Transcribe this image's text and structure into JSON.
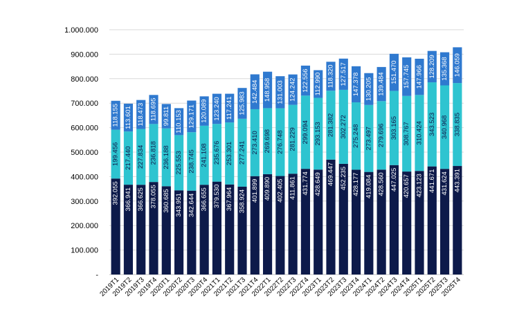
{
  "chart_data": {
    "type": "bar",
    "stacked": true,
    "ylim": [
      0,
      1000000
    ],
    "yticks": [
      "-",
      "100.000",
      "200.000",
      "300.000",
      "400.000",
      "500.000",
      "600.000",
      "700.000",
      "800.000",
      "900.000",
      "1.000.000"
    ],
    "grid": true,
    "categories": [
      "2019T1",
      "2019T2",
      "2019T3",
      "2019T4",
      "2020T1",
      "2020T2",
      "2020T3",
      "2020T4",
      "2021T1",
      "2021T2",
      "2021T3",
      "2021T4",
      "2022T1",
      "2022T2",
      "2022T3",
      "2022T4",
      "2023T1",
      "2023T2",
      "2023T3",
      "2023T4",
      "2024T1",
      "2024T2",
      "2024T3",
      "2024T4",
      "2025T1",
      "2025T2",
      "2025T3",
      "2025T4"
    ],
    "series": [
      {
        "color": "#0d1a4a",
        "label_color": "#ffffff",
        "values": [
          392055,
          366941,
          366625,
          378055,
          360685,
          343951,
          342644,
          366655,
          379530,
          367964,
          358924,
          401899,
          409890,
          402405,
          411861,
          431774,
          428649,
          469447,
          452235,
          428177,
          419084,
          428560,
          447025,
          420657,
          423123,
          441671,
          431624,
          443391
        ],
        "labels": [
          "392.055",
          "366.941",
          "366.625",
          "378.055",
          "360.685",
          "343.951",
          "342.644",
          "366.655",
          "379.530",
          "367.964",
          "358.924",
          "401.899",
          "409.890",
          "402.405",
          "411.861",
          "431.774",
          "428.649",
          "469.447",
          "452.235",
          "428.177",
          "419.084",
          "428.560",
          "447.025",
          "420.657",
          "423.123",
          "441.671",
          "431.624",
          "443.391"
        ]
      },
      {
        "color": "#2ec4d0",
        "label_color": "#0d1a4a",
        "values": [
          199456,
          217440,
          227834,
          236818,
          236188,
          225553,
          238745,
          241108,
          235676,
          253301,
          277241,
          273410,
          269698,
          276748,
          281229,
          299094,
          293153,
          281382,
          302272,
          275248,
          273497,
          279696,
          303165,
          308767,
          310424,
          343523,
          340968,
          338835
        ],
        "labels": [
          "199.456",
          "217.440",
          "227.834",
          "236.818",
          "236.188",
          "225.553",
          "238.745",
          "241.108",
          "235.676",
          "253.301",
          "277.241",
          "273.410",
          "269.698",
          "276.748",
          "281.229",
          "299.094",
          "293.153",
          "281.382",
          "302.272",
          "275.248",
          "273.497",
          "279.696",
          "303.165",
          "308.767",
          "310.424",
          "343.523",
          "340.968",
          "338.835"
        ]
      },
      {
        "color": "#2f79cf",
        "label_color": "#ffffff",
        "values": [
          118155,
          113601,
          118473,
          118695,
          99811,
          110153,
          129171,
          120089,
          123240,
          117241,
          125983,
          142484,
          148958,
          131003,
          124242,
          122556,
          112990,
          118320,
          127517,
          147378,
          130205,
          139484,
          151470,
          157745,
          147966,
          128209,
          135368,
          146059
        ],
        "labels": [
          "118.155",
          "113.601",
          "118.473",
          "118.695",
          "99.811",
          "110.153",
          "129.171",
          "120.089",
          "123.240",
          "117.241",
          "125.983",
          "142.484",
          "148.958",
          "131.003",
          "124.242",
          "122.556",
          "112.990",
          "118.320",
          "127.517",
          "147.378",
          "130.205",
          "139.484",
          "151.470",
          "157.745",
          "147.966",
          "128.209",
          "135.368",
          "146.059"
        ]
      }
    ]
  }
}
